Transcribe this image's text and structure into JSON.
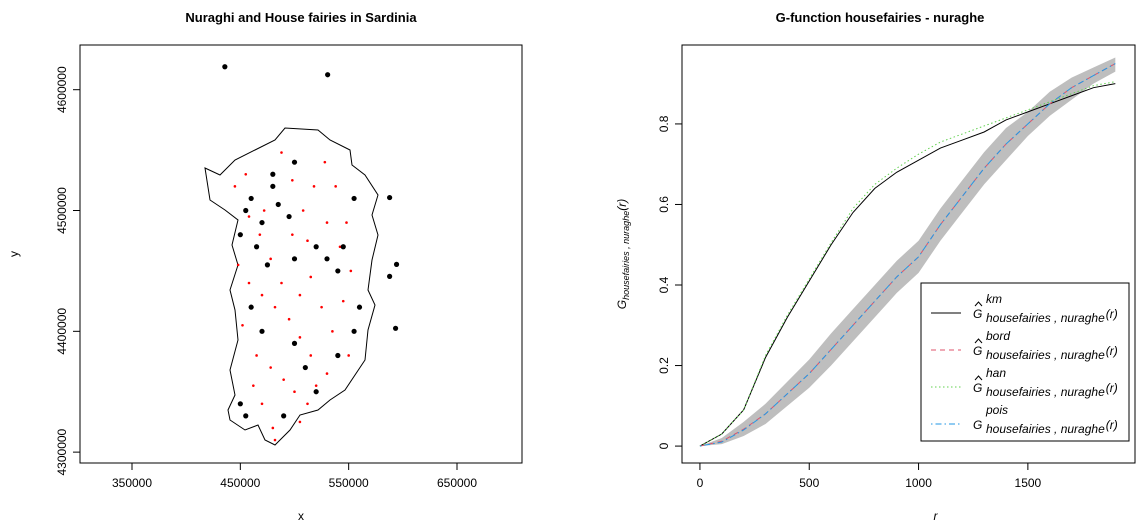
{
  "chart_data": [
    {
      "type": "scatter",
      "title": "Nuraghi and House fairies in Sardinia",
      "xlabel": "x",
      "ylabel": "y",
      "xlim": [
        302000,
        710000
      ],
      "ylim": [
        4291000,
        4637000
      ],
      "xticks": [
        350000,
        450000,
        550000,
        650000
      ],
      "yticks": [
        4300000,
        4400000,
        4500000,
        4600000
      ],
      "series": [
        {
          "color": "#ff0000",
          "size": 1.3,
          "x": [
            445000,
            458000,
            468000,
            478000,
            488000,
            498000,
            508000,
            518000,
            528000,
            538000,
            548000,
            458000,
            470000,
            482000,
            495000,
            505000,
            515000,
            525000,
            535000,
            545000,
            465000,
            478000,
            490000,
            500000,
            512000,
            505000,
            470000,
            480000,
            482000,
            462000,
            452000,
            448000,
            505000,
            515000,
            530000,
            520000,
            550000,
            552000,
            542000,
            498000,
            488000,
            512000,
            472000,
            455000,
            530000
          ],
          "y": [
            4520000,
            4495000,
            4480000,
            4460000,
            4440000,
            4480000,
            4500000,
            4520000,
            4540000,
            4520000,
            4490000,
            4440000,
            4430000,
            4420000,
            4410000,
            4430000,
            4445000,
            4420000,
            4400000,
            4425000,
            4380000,
            4370000,
            4360000,
            4350000,
            4340000,
            4325000,
            4340000,
            4320000,
            4310000,
            4355000,
            4405000,
            4455000,
            4395000,
            4380000,
            4365000,
            4355000,
            4380000,
            4450000,
            4470000,
            4525000,
            4548000,
            4475000,
            4500000,
            4530000,
            4490000
          ]
        },
        {
          "color": "#000000",
          "size": 2.6,
          "x": [
            455000,
            460000,
            470000,
            480000,
            485000,
            495000,
            465000,
            475000,
            450000,
            500000,
            520000,
            530000,
            540000,
            545000,
            555000,
            560000,
            555000,
            540000,
            510000,
            500000,
            470000,
            460000,
            450000,
            455000,
            520000,
            490000,
            480000,
            500000,
            435700,
            530600,
            587800,
            594200,
            587800,
            593300
          ],
          "y": [
            4500000,
            4510000,
            4490000,
            4520000,
            4505000,
            4495000,
            4470000,
            4455000,
            4480000,
            4460000,
            4470000,
            4460000,
            4450000,
            4470000,
            4510000,
            4420000,
            4400000,
            4380000,
            4370000,
            4390000,
            4400000,
            4420000,
            4340000,
            4330000,
            4350000,
            4330000,
            4530000,
            4540000,
            4619000,
            4612400,
            4510700,
            4455400,
            4445500,
            4402500
          ]
        }
      ]
    },
    {
      "type": "line",
      "title": "G-function housefairies - nuraghe",
      "xlabel": "r",
      "ylabel": {
        "symbol": "G",
        "subscript": "housefairies , nuraghe",
        "arg": "(r)"
      },
      "xlim": [
        -82,
        1990
      ],
      "ylim": [
        -0.042,
        0.996
      ],
      "xticks": [
        0,
        500,
        1000,
        1500
      ],
      "yticks": [
        0,
        0.2,
        0.4,
        0.6,
        0.8
      ],
      "legend": "bottomright",
      "x": [
        0,
        100,
        200,
        300,
        400,
        500,
        600,
        700,
        800,
        900,
        1000,
        1100,
        1200,
        1300,
        1400,
        1500,
        1600,
        1700,
        1800,
        1900
      ],
      "envelope": {
        "color": "#bebebe",
        "lo": [
          0,
          0.005,
          0.025,
          0.055,
          0.1,
          0.145,
          0.2,
          0.26,
          0.32,
          0.38,
          0.43,
          0.51,
          0.58,
          0.65,
          0.71,
          0.77,
          0.82,
          0.86,
          0.9,
          0.93
        ],
        "hi": [
          0,
          0.02,
          0.06,
          0.105,
          0.16,
          0.215,
          0.28,
          0.34,
          0.4,
          0.46,
          0.51,
          0.59,
          0.66,
          0.73,
          0.79,
          0.83,
          0.88,
          0.915,
          0.94,
          0.965
        ]
      },
      "series": [
        {
          "name": {
            "symbol": "G",
            "hat": true,
            "superscript": "km",
            "subscript": "housefairies , nuraghe",
            "arg": "(r)"
          },
          "color": "#000000",
          "dash": "solid",
          "values": [
            0,
            0.03,
            0.09,
            0.22,
            0.32,
            0.41,
            0.5,
            0.58,
            0.64,
            0.68,
            0.71,
            0.74,
            0.76,
            0.78,
            0.81,
            0.83,
            0.85,
            0.87,
            0.89,
            0.9
          ]
        },
        {
          "name": {
            "symbol": "G",
            "hat": true,
            "superscript": "bord",
            "subscript": "housefairies , nuraghe",
            "arg": "(r)"
          },
          "color": "#df536b",
          "dash": "dashed",
          "values": [
            0,
            0.012,
            0.042,
            0.08,
            0.13,
            0.18,
            0.24,
            0.3,
            0.36,
            0.42,
            0.47,
            0.55,
            0.62,
            0.69,
            0.75,
            0.8,
            0.85,
            0.89,
            0.92,
            0.95
          ]
        },
        {
          "name": {
            "symbol": "G",
            "hat": true,
            "superscript": "han",
            "subscript": "housefairies , nuraghe",
            "arg": "(r)"
          },
          "color": "#61d04f",
          "dash": "dotted",
          "values": [
            0,
            0.03,
            0.09,
            0.225,
            0.325,
            0.415,
            0.505,
            0.59,
            0.65,
            0.69,
            0.725,
            0.755,
            0.775,
            0.795,
            0.815,
            0.835,
            0.855,
            0.875,
            0.895,
            0.905
          ]
        },
        {
          "name": {
            "symbol": "G",
            "hat": false,
            "superscript": "pois",
            "subscript": "housefairies , nuraghe",
            "arg": "(r)"
          },
          "color": "#2297e6",
          "dash": "dotdash",
          "values": [
            0,
            0.01,
            0.04,
            0.08,
            0.13,
            0.18,
            0.24,
            0.3,
            0.36,
            0.42,
            0.47,
            0.55,
            0.62,
            0.69,
            0.75,
            0.8,
            0.85,
            0.89,
            0.92,
            0.95
          ]
        }
      ]
    }
  ]
}
